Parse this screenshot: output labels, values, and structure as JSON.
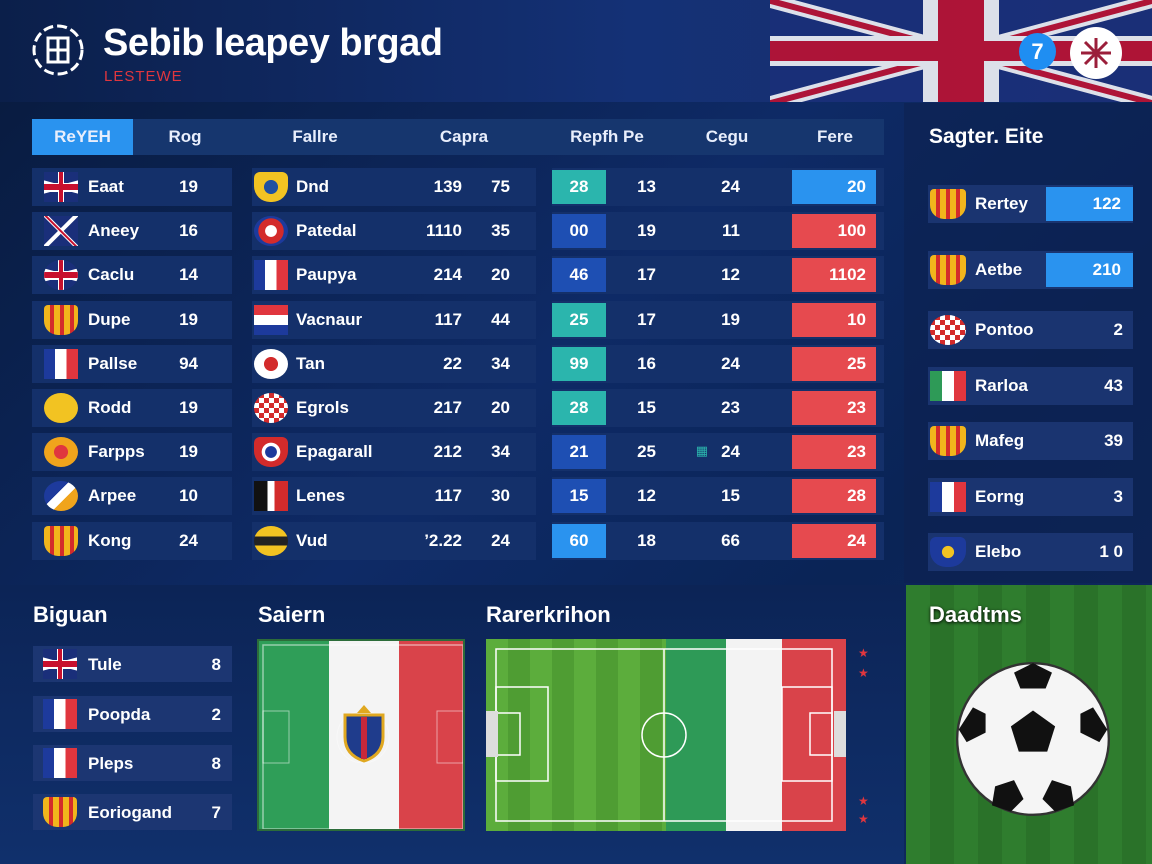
{
  "header": {
    "title": "Sebib leapey brgad",
    "subtitle": "LESTEWE",
    "round_button": "7",
    "badge_icon": "emblem-icon",
    "logo_icon": "team-crest-icon"
  },
  "table": {
    "tabs": [
      "ReYEH",
      "Rog",
      "Fallre",
      "Capra",
      "Repfh Pe",
      "Cegu",
      "Fere"
    ],
    "col1": [
      {
        "flag": "uk",
        "name": "Eaat",
        "val": "19"
      },
      {
        "flag": "cross",
        "name": "Aneey",
        "val": "16"
      },
      {
        "flag": "uk-round",
        "name": "Caclu",
        "val": "14"
      },
      {
        "flag": "crest-yellow",
        "name": "Dupe",
        "val": "19"
      },
      {
        "flag": "france",
        "name": "Pallse",
        "val": "94"
      },
      {
        "flag": "yellow-circle",
        "name": "Rodd",
        "val": "19"
      },
      {
        "flag": "orange-circle",
        "name": "Farpps",
        "val": "19"
      },
      {
        "flag": "blue-swirl",
        "name": "Arpee",
        "val": "10"
      },
      {
        "flag": "crest-yellow",
        "name": "Kong",
        "val": "24"
      }
    ],
    "col2": [
      {
        "flag": "yellow-shield",
        "name": "Dnd"
      },
      {
        "flag": "blue-red-circle",
        "name": "Patedal"
      },
      {
        "flag": "france",
        "name": "Paupya"
      },
      {
        "flag": "red-blue-flag",
        "name": "Vacnaur"
      },
      {
        "flag": "red-white-circle",
        "name": "Tan"
      },
      {
        "flag": "checker-circle",
        "name": "Egrols"
      },
      {
        "flag": "shield-red",
        "name": "Epagarall"
      },
      {
        "flag": "black-red",
        "name": "Lenes"
      },
      {
        "flag": "yellow-oval",
        "name": "Vud"
      }
    ],
    "col3": [
      [
        "139",
        "75"
      ],
      [
        "1110",
        "35"
      ],
      [
        "214",
        "20"
      ],
      [
        "117",
        "44"
      ],
      [
        "22",
        "34"
      ],
      [
        "217",
        "20"
      ],
      [
        "212",
        "34"
      ],
      [
        "117",
        "30"
      ],
      [
        "’2.22",
        "24"
      ]
    ],
    "col4": [
      {
        "box": "28",
        "color": "#2bb5ad",
        "a": "13",
        "b": "24",
        "score": "20",
        "scolor": "#2a93ef"
      },
      {
        "box": "00",
        "color": "#1e4fb3",
        "a": "19",
        "b": "11",
        "score": "100",
        "scolor": "#e64a4f"
      },
      {
        "box": "46",
        "color": "#1e4fb3",
        "a": "17",
        "b": "12",
        "score": "1102",
        "scolor": "#e64a4f"
      },
      {
        "box": "25",
        "color": "#2bb5ad",
        "a": "17",
        "b": "19",
        "score": "10",
        "scolor": "#e64a4f"
      },
      {
        "box": "99",
        "color": "#2bb5ad",
        "a": "16",
        "b": "24",
        "score": "25",
        "scolor": "#e64a4f"
      },
      {
        "box": "28",
        "color": "#2bb5ad",
        "a": "15",
        "b": "23",
        "score": "23",
        "scolor": "#e64a4f"
      },
      {
        "box": "21",
        "color": "#1e4fb3",
        "a": "25",
        "b": "24",
        "score": "23",
        "scolor": "#e64a4f"
      },
      {
        "box": "15",
        "color": "#1e4fb3",
        "a": "12",
        "b": "15",
        "score": "28",
        "scolor": "#e64a4f"
      },
      {
        "box": "60",
        "color": "#2a93ef",
        "a": "18",
        "b": "66",
        "score": "24",
        "scolor": "#e64a4f"
      }
    ]
  },
  "sidebar": {
    "title": "Sagter. Eite",
    "rows": [
      {
        "flag": "crest-yellow",
        "name": "Rertey",
        "val": "122",
        "hl": true
      },
      {
        "flag": "crest-yellow",
        "name": "Aetbe",
        "val": "210",
        "hl": true
      },
      {
        "flag": "checker-circle",
        "name": "Pontoo",
        "val": "2",
        "hl": false
      },
      {
        "flag": "italy",
        "name": "Rarloa",
        "val": "43",
        "hl": false
      },
      {
        "flag": "crest-yellow",
        "name": "Mafeg",
        "val": "39",
        "hl": false
      },
      {
        "flag": "france",
        "name": "Eorng",
        "val": "3",
        "hl": false
      },
      {
        "flag": "shield-blue",
        "name": "Elebo",
        "val": "1 0",
        "hl": false
      }
    ]
  },
  "bottom": {
    "left": {
      "title": "Biguan",
      "rows": [
        {
          "flag": "uk",
          "name": "Tule",
          "val": "8"
        },
        {
          "flag": "france",
          "name": "Poopda",
          "val": "2"
        },
        {
          "flag": "france",
          "name": "Pleps",
          "val": "8"
        },
        {
          "flag": "crest-yellow",
          "name": "Eoriogand",
          "val": "7"
        }
      ]
    },
    "middle": {
      "title": "Saiern"
    },
    "right": {
      "title": "Rarerkrihon"
    },
    "far": {
      "title": "Daadtms"
    }
  },
  "colors": {
    "accent_blue": "#2a93ef",
    "accent_red": "#e64a4f",
    "teal": "#2bb5ad",
    "panel": "#14306a"
  }
}
